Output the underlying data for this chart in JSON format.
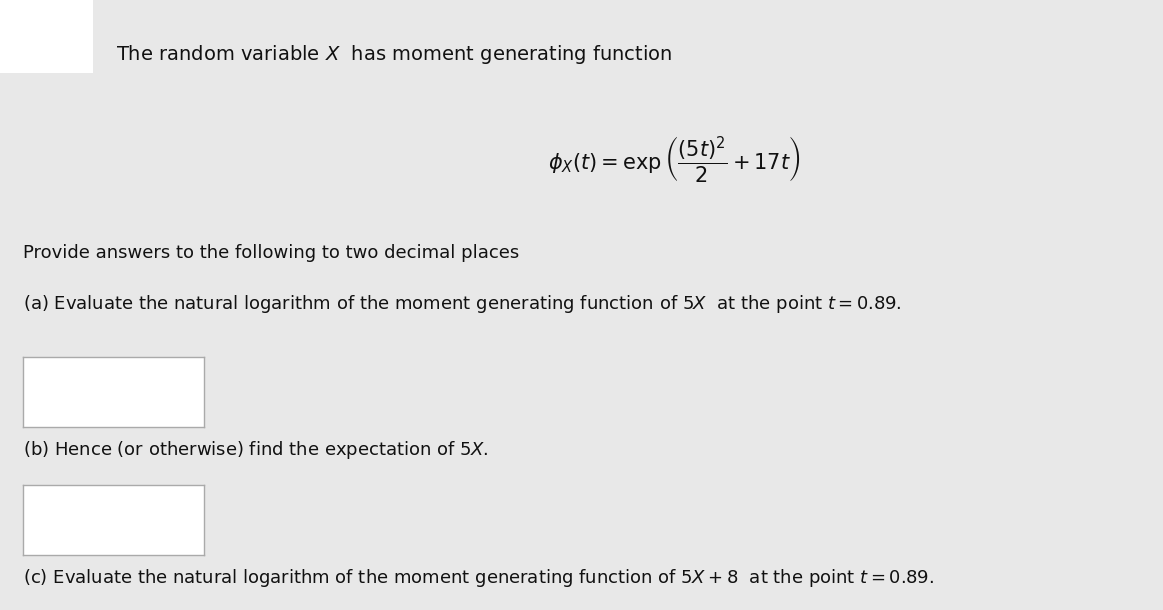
{
  "bg_color": "#e8e8e8",
  "text_color": "#111111",
  "title_line": "The random variable $X$  has moment generating function",
  "formula": "$\\phi_X(t) = \\exp\\left(\\dfrac{(5t)^2}{2} + 17t\\right)$",
  "subtitle": "Provide answers to the following to two decimal places",
  "part_a": "(a) Evaluate the natural logarithm of the moment generating function of $5X$  at the point $t = 0.89$.",
  "part_b": "(b) Hence (or otherwise) find the expectation of $5X$.",
  "part_c": "(c) Evaluate the natural logarithm of the moment generating function of $5X + 8$  at the point $t = 0.89$.",
  "box_color": "#ffffff",
  "box_edge_color": "#aaaaaa",
  "fig_width": 11.63,
  "fig_height": 6.1,
  "dpi": 100
}
